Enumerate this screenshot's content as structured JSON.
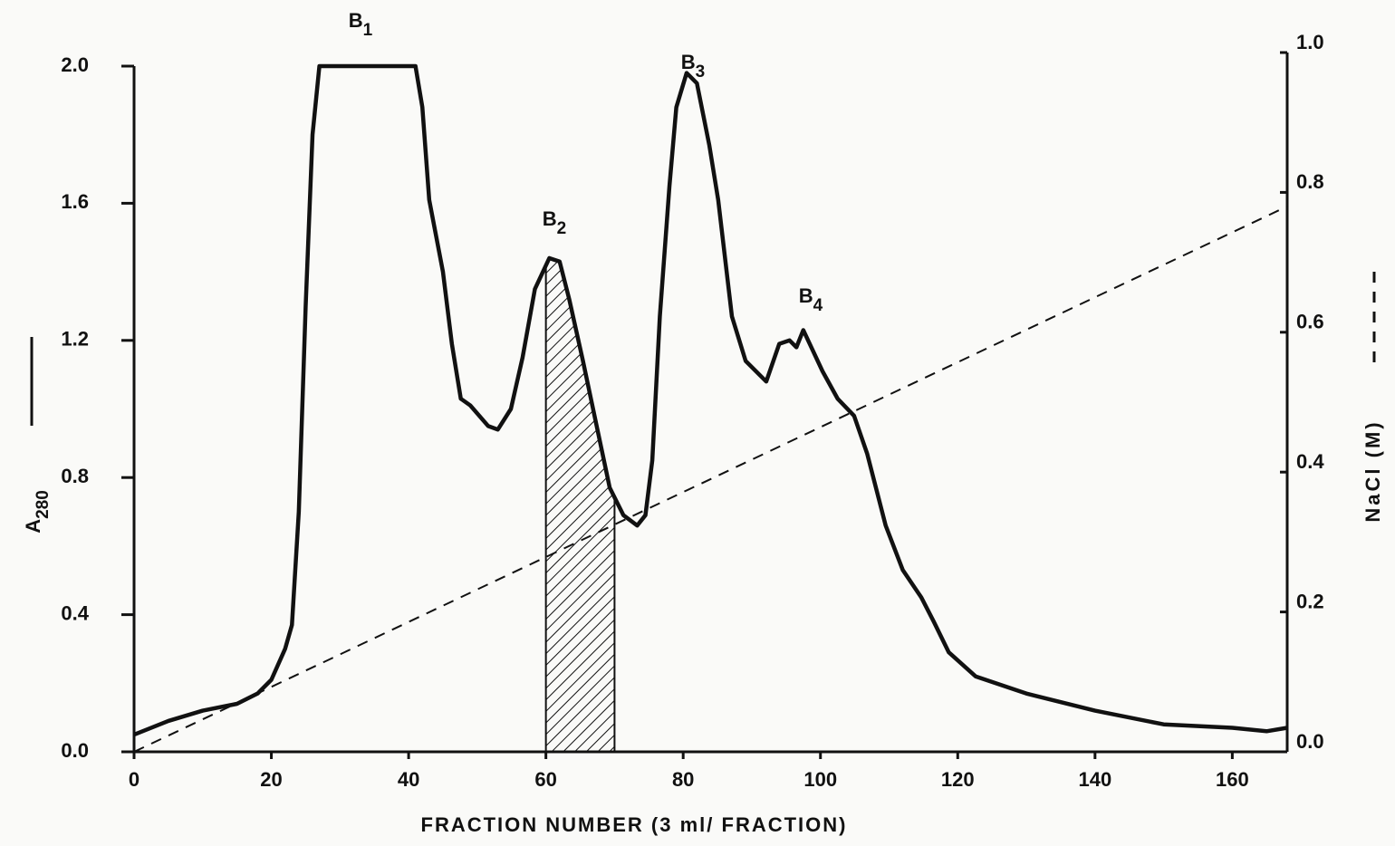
{
  "chart_data": {
    "type": "line",
    "xlabel": "FRACTION  NUMBER (3 ml/ FRACTION)",
    "ylabel": "A280",
    "y2label": "NaCl (M)",
    "xlim": [
      0,
      168
    ],
    "xticks": [
      0,
      20,
      40,
      60,
      80,
      100,
      120,
      140,
      160
    ],
    "ylim": [
      0,
      2.0
    ],
    "yticks": [
      {
        "value": 0,
        "label": "0.0"
      },
      {
        "value": 0.4,
        "label": "0.4"
      },
      {
        "value": 0.8,
        "label": "0.8"
      },
      {
        "value": 1.2,
        "label": "1.2"
      },
      {
        "value": 1.6,
        "label": "1.6"
      },
      {
        "value": 2.0,
        "label": "2.0"
      }
    ],
    "y2lim": [
      0,
      1.0
    ],
    "y2ticks": [
      {
        "value": 0,
        "label": "0.0"
      },
      {
        "value": 0.2,
        "label": "0.2"
      },
      {
        "value": 0.4,
        "label": "0.4"
      },
      {
        "value": 0.6,
        "label": "0.6"
      },
      {
        "value": 0.8,
        "label": "0.8"
      },
      {
        "value": 1.0,
        "label": "1.0"
      }
    ],
    "peak_labels": [
      "B1",
      "B2",
      "B3",
      "B4"
    ],
    "shaded": [
      60,
      70
    ],
    "series": [
      {
        "color": "#111111",
        "x": [
          0,
          5,
          10,
          15,
          18,
          20,
          22,
          23,
          24,
          25,
          26,
          27,
          41,
          42,
          43,
          45,
          46.3,
          47.6,
          49,
          51.6,
          53,
          54.9,
          56.6,
          58.4,
          60.5,
          62,
          63.4,
          65.4,
          67.4,
          69.3,
          71.3,
          73.3,
          74.5,
          75.5,
          76.6,
          78,
          79,
          80.5,
          82,
          83.8,
          85.1,
          87.1,
          89.1,
          92.1,
          94,
          95.5,
          96.5,
          97.5,
          100.3,
          102.5,
          104.9,
          106.8,
          109.5,
          112,
          114.7,
          116.5,
          118.7,
          122.6,
          130,
          140,
          150,
          160,
          165,
          168
        ],
        "values": [
          0.05,
          0.09,
          0.12,
          0.14,
          0.17,
          0.21,
          0.3,
          0.37,
          0.7,
          1.3,
          1.8,
          2.0,
          2.0,
          1.88,
          1.61,
          1.4,
          1.19,
          1.03,
          1.01,
          0.95,
          0.94,
          1.0,
          1.15,
          1.35,
          1.44,
          1.43,
          1.32,
          1.14,
          0.95,
          0.77,
          0.69,
          0.66,
          0.69,
          0.85,
          1.27,
          1.65,
          1.88,
          1.98,
          1.95,
          1.77,
          1.61,
          1.27,
          1.14,
          1.08,
          1.19,
          1.2,
          1.18,
          1.23,
          1.11,
          1.03,
          0.98,
          0.87,
          0.66,
          0.53,
          0.45,
          0.38,
          0.29,
          0.22,
          0.17,
          0.12,
          0.08,
          0.07,
          0.06,
          0.07
        ]
      },
      {
        "color": "#111111",
        "axis": "y2",
        "dashed": true,
        "x": [
          0,
          168
        ],
        "values": [
          0,
          0.78
        ]
      }
    ]
  }
}
